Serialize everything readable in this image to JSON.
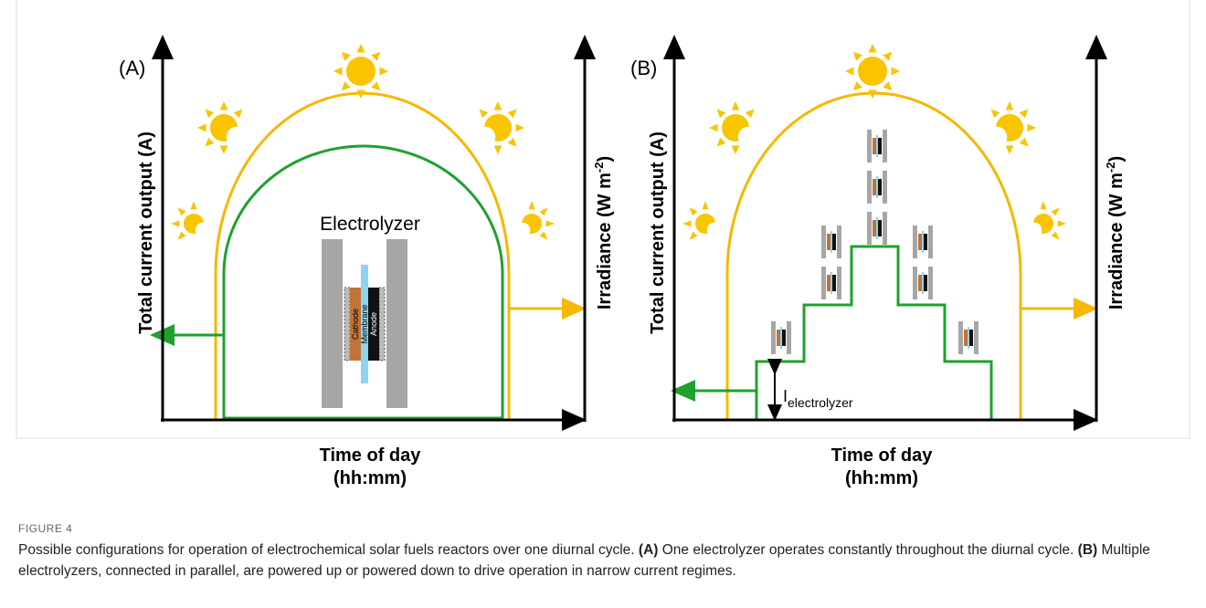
{
  "panels": [
    {
      "label": "(A)",
      "y_label": "Total current output (A)",
      "y2_label": "Irradiance (W m",
      "y2_sup": "-2",
      "y2_end": ")",
      "x_label": "Time of day",
      "x_sublabel": "(hh:mm)",
      "device_label": "Electrolyzer",
      "layers": [
        "Cathode",
        "Membrane",
        "Anode"
      ]
    },
    {
      "label": "(B)",
      "y_label": "Total current output (A)",
      "y2_label": "Irradiance (W m",
      "y2_sup": "-2",
      "y2_end": ")",
      "x_label": "Time of day",
      "x_sublabel": "(hh:mm)",
      "current_label": "I",
      "current_sub": "electrolyzer"
    }
  ],
  "caption": {
    "figure": "FIGURE 4",
    "parts": [
      "Possible configurations for operation of electrochemical solar fuels reactors over one diurnal cycle. ",
      "(A)",
      " One electrolyzer operates constantly throughout the diurnal cycle. ",
      "(B)",
      " Multiple electrolyzers, connected in parallel, are powered up or powered down to drive operation in narrow current regimes."
    ]
  }
}
